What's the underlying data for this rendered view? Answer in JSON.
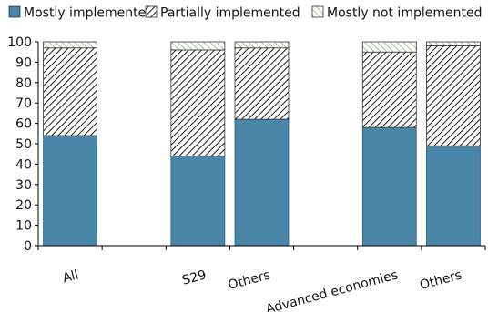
{
  "chart_data": {
    "type": "bar",
    "stacked": true,
    "categories": [
      "All",
      "",
      "S29",
      "Others",
      "",
      "Advanced economies",
      "Others"
    ],
    "series": [
      {
        "name": "Mostly implemented",
        "values": [
          54,
          null,
          44,
          62,
          null,
          58,
          49
        ]
      },
      {
        "name": "Partially implemented",
        "values": [
          43,
          null,
          52,
          35,
          null,
          37,
          49
        ]
      },
      {
        "name": "Mostly not implemented",
        "values": [
          3,
          null,
          4,
          3,
          null,
          5,
          2
        ]
      }
    ],
    "ylim": [
      0,
      100
    ],
    "yticks": [
      0,
      10,
      20,
      30,
      40,
      50,
      60,
      70,
      80,
      90,
      100
    ],
    "legend_position": "top",
    "grid": false,
    "colors": {
      "mostly_implemented": "#4a86a8",
      "mostly_implemented_stroke": "#2f5f7a",
      "partially_hatch": "#000000",
      "not_hatch": "#7fae5f",
      "axis": "#000000"
    }
  }
}
